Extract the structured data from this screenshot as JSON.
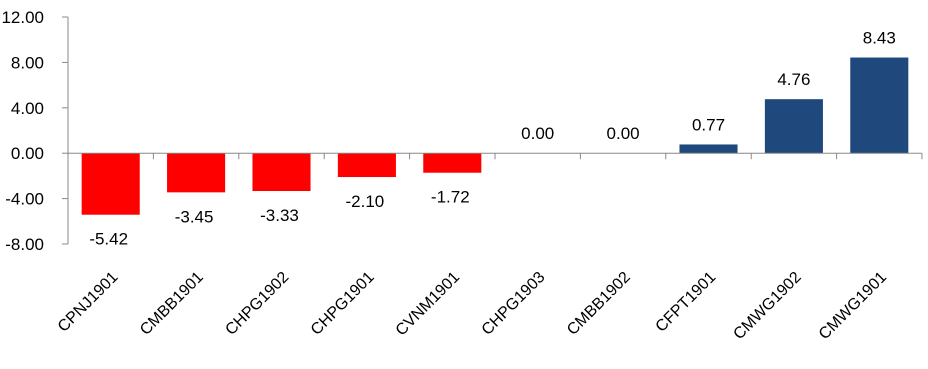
{
  "chart_data": {
    "type": "bar",
    "title": "",
    "xlabel": "",
    "ylabel": "",
    "ylim": [
      -8,
      12
    ],
    "yticks": [
      -8,
      -4,
      0,
      4,
      8,
      12
    ],
    "ytick_labels": [
      "-8.00",
      "-4.00",
      "0.00",
      "4.00",
      "8.00",
      "12.00"
    ],
    "categories": [
      "CPNJ1901",
      "CMBB1901",
      "CHPG1902",
      "CHPG1901",
      "CVNM1901",
      "CHPG1903",
      "CMBB1902",
      "CFPT1901",
      "CMWG1902",
      "CMWG1901"
    ],
    "values": [
      -5.42,
      -3.45,
      -3.33,
      -2.1,
      -1.72,
      0.0,
      0.0,
      0.77,
      4.76,
      8.43
    ],
    "value_labels": [
      "-5.42",
      "-3.45",
      "-3.33",
      "-2.10",
      "-1.72",
      "0.00",
      "0.00",
      "0.77",
      "4.76",
      "8.43"
    ],
    "colors": {
      "negative": "#ff0000",
      "positive": "#1f497d",
      "axis": "#888888"
    },
    "grid": false,
    "legend": "none"
  }
}
